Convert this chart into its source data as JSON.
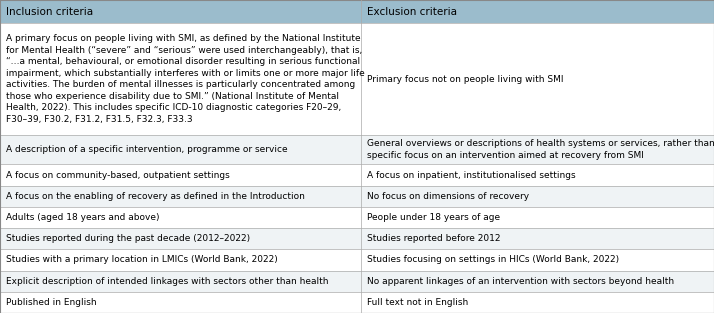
{
  "header": [
    "Inclusion criteria",
    "Exclusion criteria"
  ],
  "header_bg": "#9BBCCC",
  "header_text_color": "#000000",
  "row_bg_light": "#FFFFFF",
  "row_bg_dark": "#EFF3F5",
  "border_color": "#AAAAAA",
  "col_split": 0.505,
  "font_size": 6.5,
  "header_font_size": 7.5,
  "link_color": "#4472C4",
  "outer_border": "#888888",
  "rows": [
    {
      "left": "A primary focus on people living with SMI, as defined by the National Institute\nfor Mental Health (“severe” and “serious” were used interchangeably), that is,\n“…a mental, behavioural, or emotional disorder resulting in serious functional\nimpairment, which substantially interferes with or limits one or more major life\nactivities. The burden of mental illnesses is particularly concentrated among\nthose who experience disability due to SMI.” (National Institute of Mental\nHealth, 2022). This includes specific ICD-10 diagnostic categories F20–29,\nF30–39, F30.2, F31.2, F31.5, F32.3, F33.3",
      "right": "Primary focus not on people living with SMI",
      "n_lines": 8
    },
    {
      "left": "A description of a specific intervention, programme or service",
      "right": "General overviews or descriptions of health systems or services, rather than a\nspecific focus on an intervention aimed at recovery from SMI",
      "n_lines": 2
    },
    {
      "left": "A focus on community-based, outpatient settings",
      "right": "A focus on inpatient, institutionalised settings",
      "n_lines": 1
    },
    {
      "left": "A focus on the enabling of recovery as defined in the Introduction",
      "right": "No focus on dimensions of recovery",
      "n_lines": 1
    },
    {
      "left": "Adults (aged 18 years and above)",
      "right": "People under 18 years of age",
      "n_lines": 1
    },
    {
      "left": "Studies reported during the past decade (2012–2022)",
      "right": "Studies reported before 2012",
      "n_lines": 1
    },
    {
      "left": "Studies with a primary location in LMICs (World Bank, 2022)",
      "right": "Studies focusing on settings in HICs (World Bank, 2022)",
      "n_lines": 1
    },
    {
      "left": "Explicit description of intended linkages with sectors other than health",
      "right": "No apparent linkages of an intervention with sectors beyond health",
      "n_lines": 1
    },
    {
      "left": "Published in English",
      "right": "Full text not in English",
      "n_lines": 1
    }
  ]
}
